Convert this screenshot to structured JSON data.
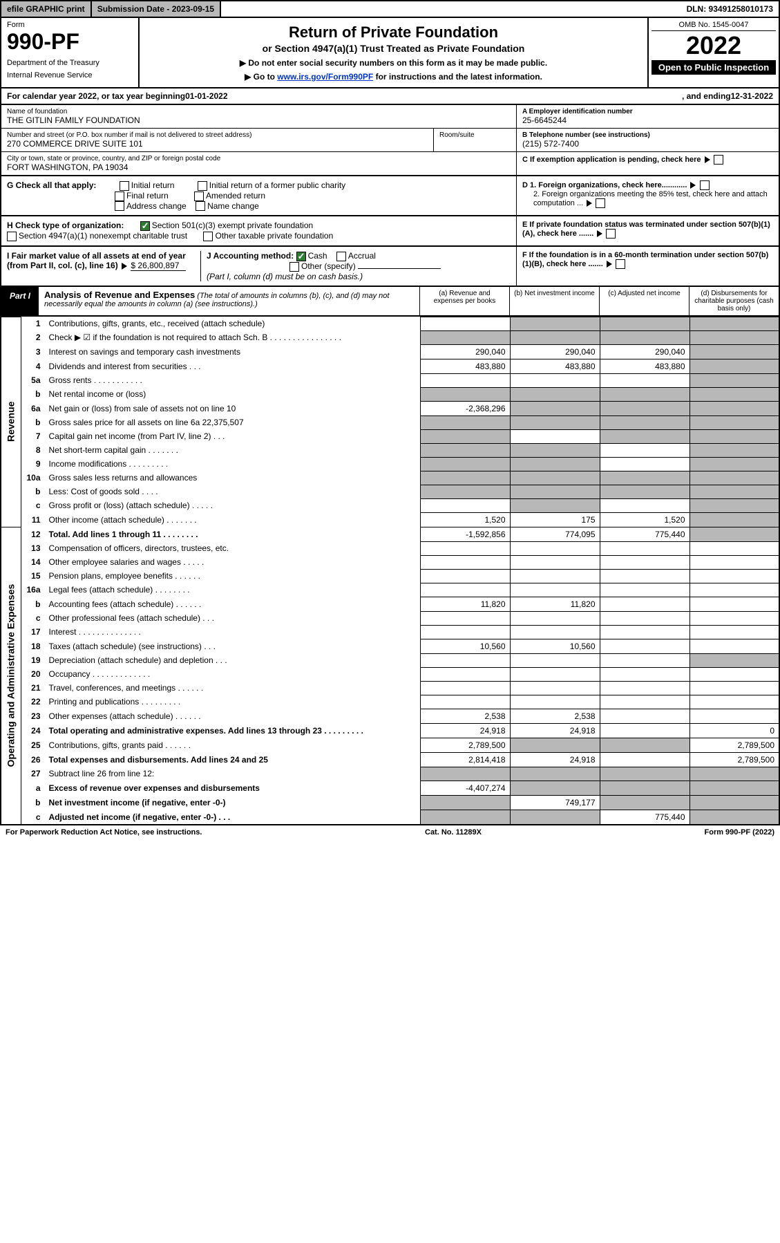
{
  "topbar": {
    "efile": "efile GRAPHIC print",
    "subdate_label": "Submission Date - 2023-09-15",
    "dln": "DLN: 93491258010173"
  },
  "header": {
    "form_label": "Form",
    "form_no": "990-PF",
    "dept": "Department of the Treasury",
    "irs": "Internal Revenue Service",
    "title": "Return of Private Foundation",
    "subtitle": "or Section 4947(a)(1) Trust Treated as Private Foundation",
    "note1": "▶ Do not enter social security numbers on this form as it may be made public.",
    "note2_pre": "▶ Go to ",
    "note2_link": "www.irs.gov/Form990PF",
    "note2_post": " for instructions and the latest information.",
    "omb": "OMB No. 1545-0047",
    "year": "2022",
    "inspect": "Open to Public Inspection"
  },
  "calendar": {
    "text_pre": "For calendar year 2022, or tax year beginning ",
    "begin": "01-01-2022",
    "text_mid": " , and ending ",
    "end": "12-31-2022"
  },
  "entity": {
    "name_label": "Name of foundation",
    "name": "THE GITLIN FAMILY FOUNDATION",
    "addr_label": "Number and street (or P.O. box number if mail is not delivered to street address)",
    "addr": "270 COMMERCE DRIVE SUITE 101",
    "room_label": "Room/suite",
    "city_label": "City or town, state or province, country, and ZIP or foreign postal code",
    "city": "FORT WASHINGTON, PA  19034",
    "a_label": "A Employer identification number",
    "a_value": "25-6645244",
    "b_label": "B Telephone number (see instructions)",
    "b_value": "(215) 572-7400",
    "c_label": "C If exemption application is pending, check here",
    "d1_label": "D 1. Foreign organizations, check here............",
    "d2_label": "2. Foreign organizations meeting the 85% test, check here and attach computation ...",
    "e_label": "E  If private foundation status was terminated under section 507(b)(1)(A), check here .......",
    "f_label": "F  If the foundation is in a 60-month termination under section 507(b)(1)(B), check here .......",
    "g_label": "G Check all that apply:",
    "g_opts": [
      "Initial return",
      "Final return",
      "Address change",
      "Initial return of a former public charity",
      "Amended return",
      "Name change"
    ],
    "h_label": "H Check type of organization:",
    "h_opt1": "Section 501(c)(3) exempt private foundation",
    "h_opt2": "Section 4947(a)(1) nonexempt charitable trust",
    "h_opt3": "Other taxable private foundation",
    "i_label": "I Fair market value of all assets at end of year (from Part II, col. (c), line 16)",
    "i_value": "$  26,800,897",
    "j_label": "J Accounting method:",
    "j_cash": "Cash",
    "j_accrual": "Accrual",
    "j_other": "Other (specify)",
    "j_note": "(Part I, column (d) must be on cash basis.)"
  },
  "part1": {
    "label": "Part I",
    "title": "Analysis of Revenue and Expenses",
    "note": " (The total of amounts in columns (b), (c), and (d) may not necessarily equal the amounts in column (a) (see instructions).)",
    "col_a": "(a) Revenue and expenses per books",
    "col_b": "(b) Net investment income",
    "col_c": "(c) Adjusted net income",
    "col_d": "(d) Disbursements for charitable purposes (cash basis only)"
  },
  "side_labels": {
    "revenue": "Revenue",
    "expenses": "Operating and Administrative Expenses"
  },
  "rows": [
    {
      "n": "1",
      "desc": "Contributions, gifts, grants, etc., received (attach schedule)",
      "a": "",
      "b": "shade",
      "c": "shade",
      "d": "shade"
    },
    {
      "n": "2",
      "desc": "Check ▶ ☑ if the foundation is not required to attach Sch. B   .  .  .  .  .  .  .  .  .  .  .  .  .  .  .  .",
      "a": "shade",
      "b": "shade",
      "c": "shade",
      "d": "shade"
    },
    {
      "n": "3",
      "desc": "Interest on savings and temporary cash investments",
      "a": "290,040",
      "b": "290,040",
      "c": "290,040",
      "d": "shade"
    },
    {
      "n": "4",
      "desc": "Dividends and interest from securities   .   .   .",
      "a": "483,880",
      "b": "483,880",
      "c": "483,880",
      "d": "shade"
    },
    {
      "n": "5a",
      "desc": "Gross rents   .   .   .   .   .   .   .   .   .   .   .",
      "a": "",
      "b": "",
      "c": "",
      "d": "shade"
    },
    {
      "n": "b",
      "desc": "Net rental income or (loss)  ",
      "a": "shade",
      "b": "shade",
      "c": "shade",
      "d": "shade"
    },
    {
      "n": "6a",
      "desc": "Net gain or (loss) from sale of assets not on line 10",
      "a": "-2,368,296",
      "b": "shade",
      "c": "shade",
      "d": "shade"
    },
    {
      "n": "b",
      "desc": "Gross sales price for all assets on line 6a        22,375,507",
      "a": "shade",
      "b": "shade",
      "c": "shade",
      "d": "shade"
    },
    {
      "n": "7",
      "desc": "Capital gain net income (from Part IV, line 2)   .   .   .",
      "a": "shade",
      "b": "",
      "c": "shade",
      "d": "shade"
    },
    {
      "n": "8",
      "desc": "Net short-term capital gain   .   .   .   .   .   .   .",
      "a": "shade",
      "b": "shade",
      "c": "",
      "d": "shade"
    },
    {
      "n": "9",
      "desc": "Income modifications   .   .   .   .   .   .   .   .   .",
      "a": "shade",
      "b": "shade",
      "c": "",
      "d": "shade"
    },
    {
      "n": "10a",
      "desc": "Gross sales less returns and allowances",
      "a": "shade",
      "b": "shade",
      "c": "shade",
      "d": "shade"
    },
    {
      "n": "b",
      "desc": "Less: Cost of goods sold   .   .   .   .  ",
      "a": "shade",
      "b": "shade",
      "c": "shade",
      "d": "shade"
    },
    {
      "n": "c",
      "desc": "Gross profit or (loss) (attach schedule)   .   .   .   .   .",
      "a": "",
      "b": "shade",
      "c": "",
      "d": "shade"
    },
    {
      "n": "11",
      "desc": "Other income (attach schedule)   .   .   .   .   .   .   .",
      "a": "1,520",
      "b": "175",
      "c": "1,520",
      "d": "shade"
    },
    {
      "n": "12",
      "desc": "Total. Add lines 1 through 11   .   .   .   .   .   .   .   .",
      "a": "-1,592,856",
      "b": "774,095",
      "c": "775,440",
      "d": "shade",
      "bold": true
    },
    {
      "n": "13",
      "desc": "Compensation of officers, directors, trustees, etc.",
      "a": "",
      "b": "",
      "c": "",
      "d": ""
    },
    {
      "n": "14",
      "desc": "Other employee salaries and wages   .   .   .   .   .",
      "a": "",
      "b": "",
      "c": "",
      "d": ""
    },
    {
      "n": "15",
      "desc": "Pension plans, employee benefits   .   .   .   .   .   .",
      "a": "",
      "b": "",
      "c": "",
      "d": ""
    },
    {
      "n": "16a",
      "desc": "Legal fees (attach schedule)   .   .   .   .   .   .   .   .",
      "a": "",
      "b": "",
      "c": "",
      "d": ""
    },
    {
      "n": "b",
      "desc": "Accounting fees (attach schedule)   .   .   .   .   .   .",
      "a": "11,820",
      "b": "11,820",
      "c": "",
      "d": ""
    },
    {
      "n": "c",
      "desc": "Other professional fees (attach schedule)   .   .   .",
      "a": "",
      "b": "",
      "c": "",
      "d": ""
    },
    {
      "n": "17",
      "desc": "Interest   .   .   .   .   .   .   .   .   .   .   .   .   .   .",
      "a": "",
      "b": "",
      "c": "",
      "d": ""
    },
    {
      "n": "18",
      "desc": "Taxes (attach schedule) (see instructions)   .   .   .",
      "a": "10,560",
      "b": "10,560",
      "c": "",
      "d": ""
    },
    {
      "n": "19",
      "desc": "Depreciation (attach schedule) and depletion   .   .   .",
      "a": "",
      "b": "",
      "c": "",
      "d": "shade"
    },
    {
      "n": "20",
      "desc": "Occupancy   .   .   .   .   .   .   .   .   .   .   .   .   .",
      "a": "",
      "b": "",
      "c": "",
      "d": ""
    },
    {
      "n": "21",
      "desc": "Travel, conferences, and meetings   .   .   .   .   .   .",
      "a": "",
      "b": "",
      "c": "",
      "d": ""
    },
    {
      "n": "22",
      "desc": "Printing and publications   .   .   .   .   .   .   .   .   .",
      "a": "",
      "b": "",
      "c": "",
      "d": ""
    },
    {
      "n": "23",
      "desc": "Other expenses (attach schedule)   .   .   .   .   .   .",
      "a": "2,538",
      "b": "2,538",
      "c": "",
      "d": ""
    },
    {
      "n": "24",
      "desc": "Total operating and administrative expenses. Add lines 13 through 23   .   .   .   .   .   .   .   .   .",
      "a": "24,918",
      "b": "24,918",
      "c": "",
      "d": "0",
      "bold": true
    },
    {
      "n": "25",
      "desc": "Contributions, gifts, grants paid   .   .   .   .   .   .",
      "a": "2,789,500",
      "b": "shade",
      "c": "shade",
      "d": "2,789,500"
    },
    {
      "n": "26",
      "desc": "Total expenses and disbursements. Add lines 24 and 25",
      "a": "2,814,418",
      "b": "24,918",
      "c": "",
      "d": "2,789,500",
      "bold": true
    },
    {
      "n": "27",
      "desc": "Subtract line 26 from line 12:",
      "a": "shade",
      "b": "shade",
      "c": "shade",
      "d": "shade"
    },
    {
      "n": "a",
      "desc": "Excess of revenue over expenses and disbursements",
      "a": "-4,407,274",
      "b": "shade",
      "c": "shade",
      "d": "shade",
      "bold": true
    },
    {
      "n": "b",
      "desc": "Net investment income (if negative, enter -0-)",
      "a": "shade",
      "b": "749,177",
      "c": "shade",
      "d": "shade",
      "bold": true
    },
    {
      "n": "c",
      "desc": "Adjusted net income (if negative, enter -0-)   .   .   .",
      "a": "shade",
      "b": "shade",
      "c": "775,440",
      "d": "shade",
      "bold": true
    }
  ],
  "footer": {
    "left": "For Paperwork Reduction Act Notice, see instructions.",
    "mid": "Cat. No. 11289X",
    "right": "Form 990-PF (2022)"
  },
  "colors": {
    "shade": "#b8b8b8",
    "link": "#0033cc",
    "check_green": "#2e7d32"
  }
}
